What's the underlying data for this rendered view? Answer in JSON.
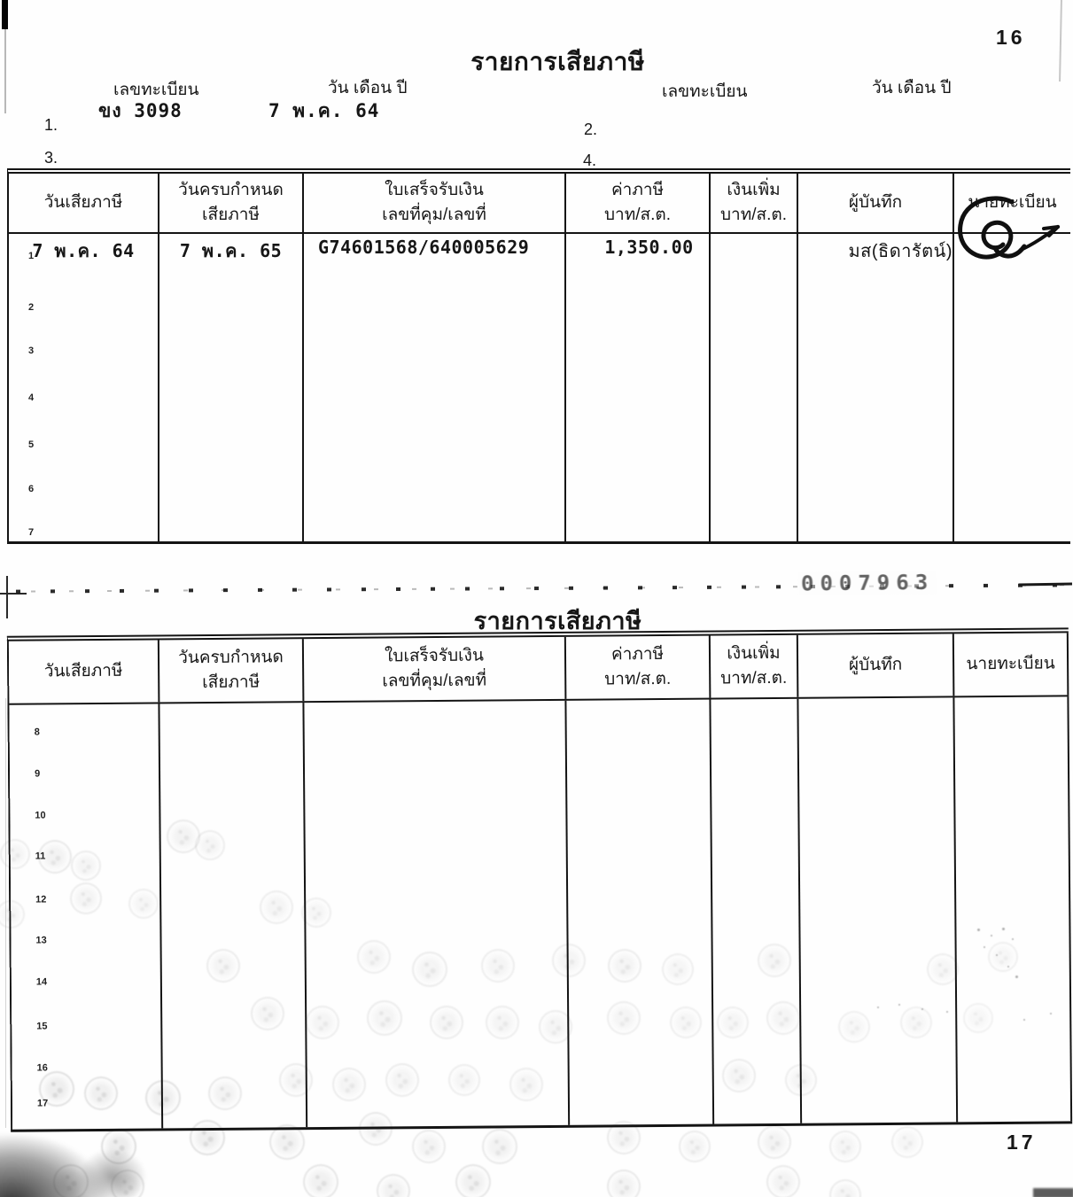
{
  "page": {
    "top_page_number": "16",
    "bottom_page_number": "17"
  },
  "top_section": {
    "title": "รายการเสียภาษี",
    "reg_label_left": "เลขทะเบียน",
    "date_label_left": "วัน เดือน ปี",
    "reg_label_right": "เลขทะเบียน",
    "date_label_right": "วัน เดือน ปี",
    "reg_value": "ขง 3098",
    "date_value": "7 พ.ค. 64",
    "line1": "1.",
    "line2": "2.",
    "line3": "3.",
    "line4": "4."
  },
  "headers": {
    "tax_date": "วันเสียภาษี",
    "due_date_line1": "วันครบกำหนด",
    "due_date_line2": "เสียภาษี",
    "receipt_line1": "ใบเสร็จรับเงิน",
    "receipt_line2": "เลขที่คุม/เลขที่",
    "tax_amount_line1": "ค่าภาษี",
    "tax_amount_line2": "บาท/ส.ต.",
    "surcharge_line1": "เงินเพิ่ม",
    "surcharge_line2": "บาท/ส.ต.",
    "recorder": "ผู้บันทึก",
    "registrar": "นายทะเบียน"
  },
  "table1": {
    "row_numbers": [
      "1",
      "2",
      "3",
      "4",
      "5",
      "6",
      "7"
    ],
    "entry": {
      "tax_date": "7 พ.ค. 64",
      "due_date": "7 พ.ค. 65",
      "receipt_no": "G74601568/640005629",
      "tax_amount": "1,350.00",
      "surcharge": "",
      "recorder": "มส(ธิดารัตน์)"
    }
  },
  "divider": {
    "title": "รายการเสียภาษี",
    "serial_number": "0007963"
  },
  "table2": {
    "row_numbers": [
      "8",
      "9",
      "10",
      "11",
      "12",
      "13",
      "14",
      "15",
      "16",
      "17"
    ]
  }
}
